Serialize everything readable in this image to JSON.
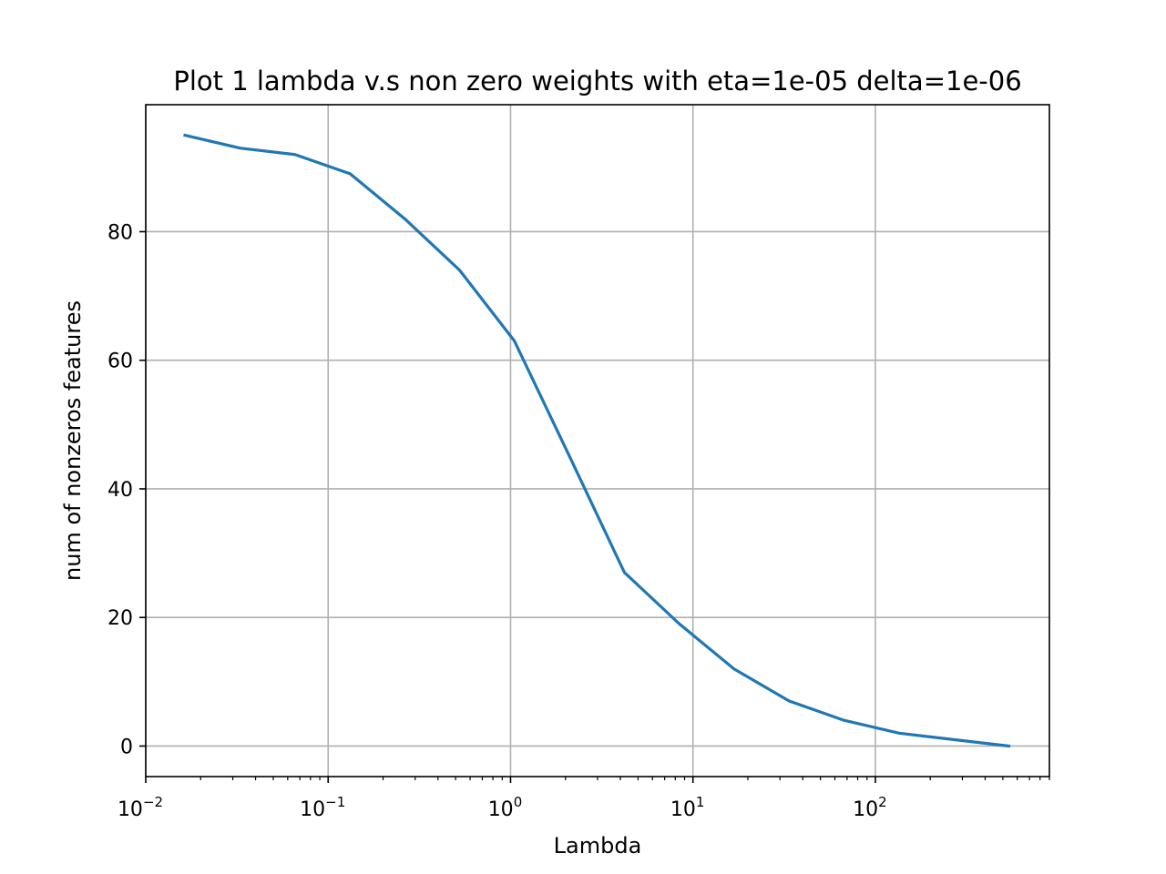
{
  "chart_data": {
    "type": "line",
    "title": "Plot 1 lambda v.s non zero weights with eta=1e-05 delta=1e-06",
    "xlabel": "Lambda",
    "ylabel": "num of nonzeros features",
    "xscale": "log",
    "xlim": [
      0.01,
      900
    ],
    "ylim": [
      -4.75,
      99.75
    ],
    "grid": true,
    "x_ticks": [
      {
        "value": 0.01,
        "base": "10",
        "exp": "−2"
      },
      {
        "value": 0.1,
        "base": "10",
        "exp": "−1"
      },
      {
        "value": 1,
        "base": "10",
        "exp": "0"
      },
      {
        "value": 10,
        "base": "10",
        "exp": "1"
      },
      {
        "value": 100,
        "base": "10",
        "exp": "2"
      }
    ],
    "y_ticks": [
      {
        "value": 0,
        "label": "0"
      },
      {
        "value": 20,
        "label": "20"
      },
      {
        "value": 40,
        "label": "40"
      },
      {
        "value": 60,
        "label": "60"
      },
      {
        "value": 80,
        "label": "80"
      }
    ],
    "series": [
      {
        "color": "#1f77b4",
        "x": [
          0.0164,
          0.0329,
          0.0658,
          0.132,
          0.263,
          0.526,
          1.05,
          2.11,
          4.21,
          8.42,
          16.8,
          33.7,
          67.4,
          135,
          539
        ],
        "y": [
          95,
          93,
          92,
          89,
          82,
          74,
          63,
          45,
          27,
          19,
          12,
          7,
          4,
          2,
          0
        ]
      }
    ]
  }
}
